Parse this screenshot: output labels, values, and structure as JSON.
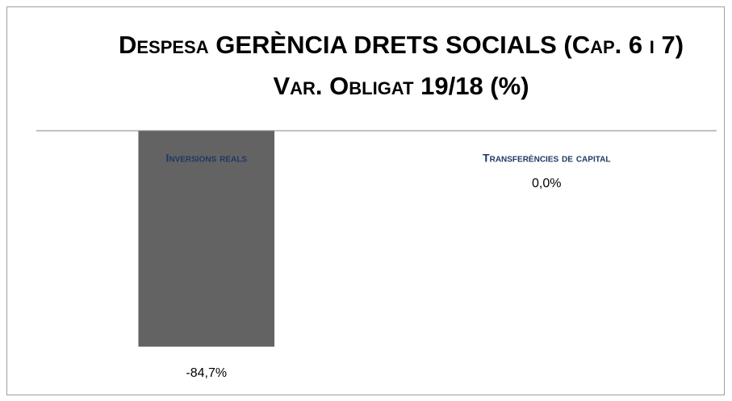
{
  "chart_data": {
    "type": "bar",
    "title": "Despesa GERÈNCIA DRETS SOCIALS (Cap. 6 i 7) Var. Obligat 19/18 (%)",
    "categories": [
      "Inversions reals",
      "Transferències de capital"
    ],
    "values": [
      -84.7,
      0
    ],
    "value_labels": [
      "-84,7%",
      "0,0%"
    ],
    "color": "#636363",
    "ylim": [
      -100,
      0
    ]
  }
}
